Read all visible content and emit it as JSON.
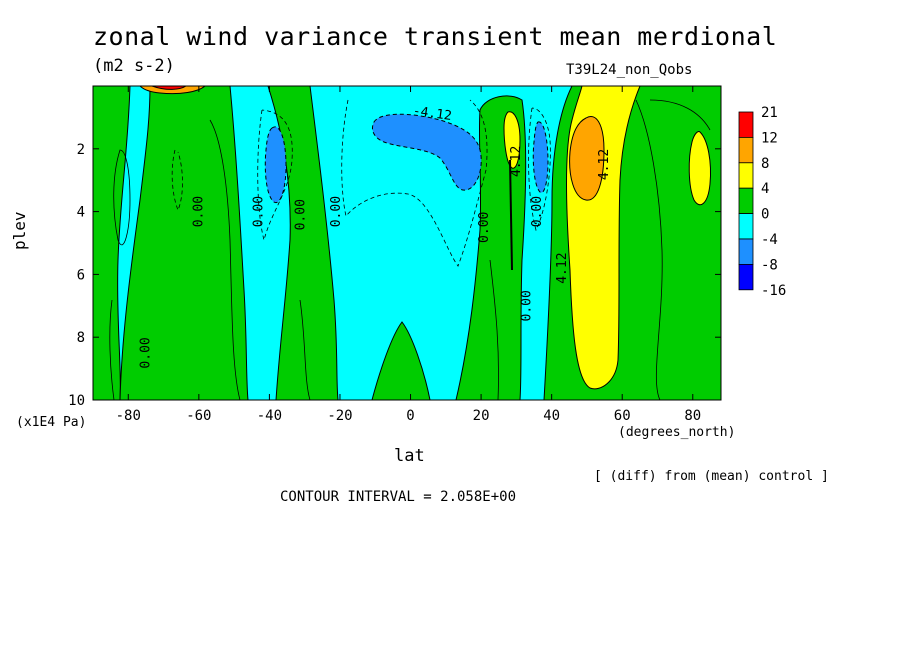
{
  "figure": {
    "title": "zonal wind variance transient mean merdional",
    "units": "(m2 s-2)",
    "experiment": "T39L24_non_Qobs",
    "diff_note": "[ (diff) from (mean) control ]",
    "contour_interval": "CONTOUR INTERVAL = 2.058E+00"
  },
  "chart_data": {
    "type": "heatmap",
    "xlabel": "lat",
    "x_units": "(degrees_north)",
    "ylabel": "plev",
    "y_units": "(x1E4 Pa)",
    "xlim": [
      -90,
      88
    ],
    "ylim": [
      0,
      10
    ],
    "y_inverted": true,
    "xticks": [
      -80,
      -60,
      -40,
      -20,
      0,
      20,
      40,
      60,
      80
    ],
    "yticks": [
      2,
      4,
      6,
      8,
      10
    ],
    "colorbar": {
      "labels": [
        "21",
        "12",
        "8",
        "4",
        "0",
        "-4",
        "-8",
        "-16"
      ],
      "colors": [
        "#ff0000",
        "#ffa500",
        "#ffff00",
        "#00cc00",
        "#00ffff",
        "#1e90ff",
        "#0000ff"
      ]
    },
    "bands": [
      {
        "lat": -90,
        "lat_end": -82,
        "value_range": "0 to 4"
      },
      {
        "lat": -82,
        "lat_end": -66,
        "value_range": "-4 to 0"
      },
      {
        "lat": -66,
        "lat_end": -46,
        "value_range": "0 to 4"
      },
      {
        "lat": -46,
        "lat_end": -33,
        "value_range": "-8 to 0"
      },
      {
        "lat": -33,
        "lat_end": -17,
        "value_range": "0 to 4"
      },
      {
        "lat": -17,
        "lat_end": 23,
        "value_range": "-8 to 0"
      },
      {
        "lat": 23,
        "lat_end": 33,
        "value_range": "0 to 4"
      },
      {
        "lat": 33,
        "lat_end": 42,
        "value_range": "-8 to 0"
      },
      {
        "lat": 42,
        "lat_end": 63,
        "value_range": "0 to 12"
      },
      {
        "lat": 63,
        "lat_end": 88,
        "value_range": "0 to 4"
      }
    ],
    "contour_labels": [
      {
        "text": "0.00",
        "lat": -74,
        "plev": 8.5
      },
      {
        "text": "0.00",
        "lat": -59,
        "plev": 4.0
      },
      {
        "text": "0.00",
        "lat": -42,
        "plev": 4.0
      },
      {
        "text": "0.00",
        "lat": -30,
        "plev": 4.1
      },
      {
        "text": "0.00",
        "lat": -20,
        "plev": 4.0
      },
      {
        "text": "-4.12",
        "lat": 6,
        "plev": 1.0
      },
      {
        "text": "0.00",
        "lat": 22,
        "plev": 4.5
      },
      {
        "text": "4.12",
        "lat": 31,
        "plev": 2.4
      },
      {
        "text": "0.00",
        "lat": 37,
        "plev": 4.0
      },
      {
        "text": "0.00",
        "lat": 34,
        "plev": 7.0
      },
      {
        "text": "4.12",
        "lat": 44,
        "plev": 5.8
      },
      {
        "text": "4.12",
        "lat": 56,
        "plev": 2.5
      }
    ]
  }
}
